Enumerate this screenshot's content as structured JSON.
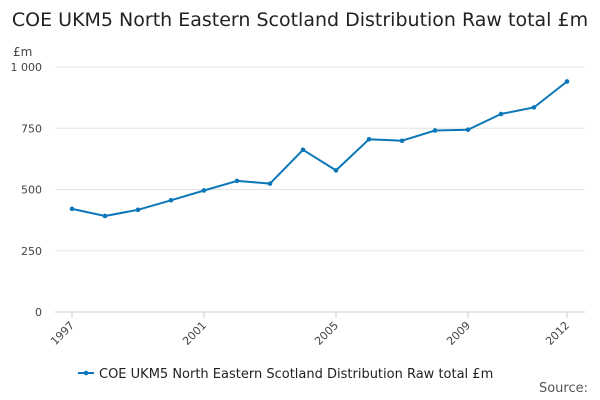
{
  "chart_data": {
    "type": "line",
    "title": "COE UKM5 North Eastern Scotland Distribution Raw total £m",
    "ylabel": "£m",
    "xlabel": "",
    "ylim": [
      0,
      1000
    ],
    "yticks": [
      0,
      250,
      500,
      750,
      1000
    ],
    "ytick_labels": [
      "0",
      "250",
      "500",
      "750",
      "1 000"
    ],
    "x": [
      1997,
      1998,
      1999,
      2000,
      2001,
      2002,
      2003,
      2004,
      2005,
      2006,
      2007,
      2008,
      2009,
      2010,
      2011,
      2012
    ],
    "xticks": [
      1997,
      2001,
      2005,
      2009,
      2012
    ],
    "grid": "horizontal",
    "legend": "bottom",
    "series": [
      {
        "name": "COE UKM5 North Eastern Scotland Distribution Raw total £m",
        "color": "#0b77b9",
        "values": [
          421,
          392,
          417,
          456,
          496,
          535,
          524,
          662,
          578,
          705,
          699,
          741,
          744,
          808,
          835,
          941
        ]
      }
    ]
  },
  "source_label": "Source:"
}
